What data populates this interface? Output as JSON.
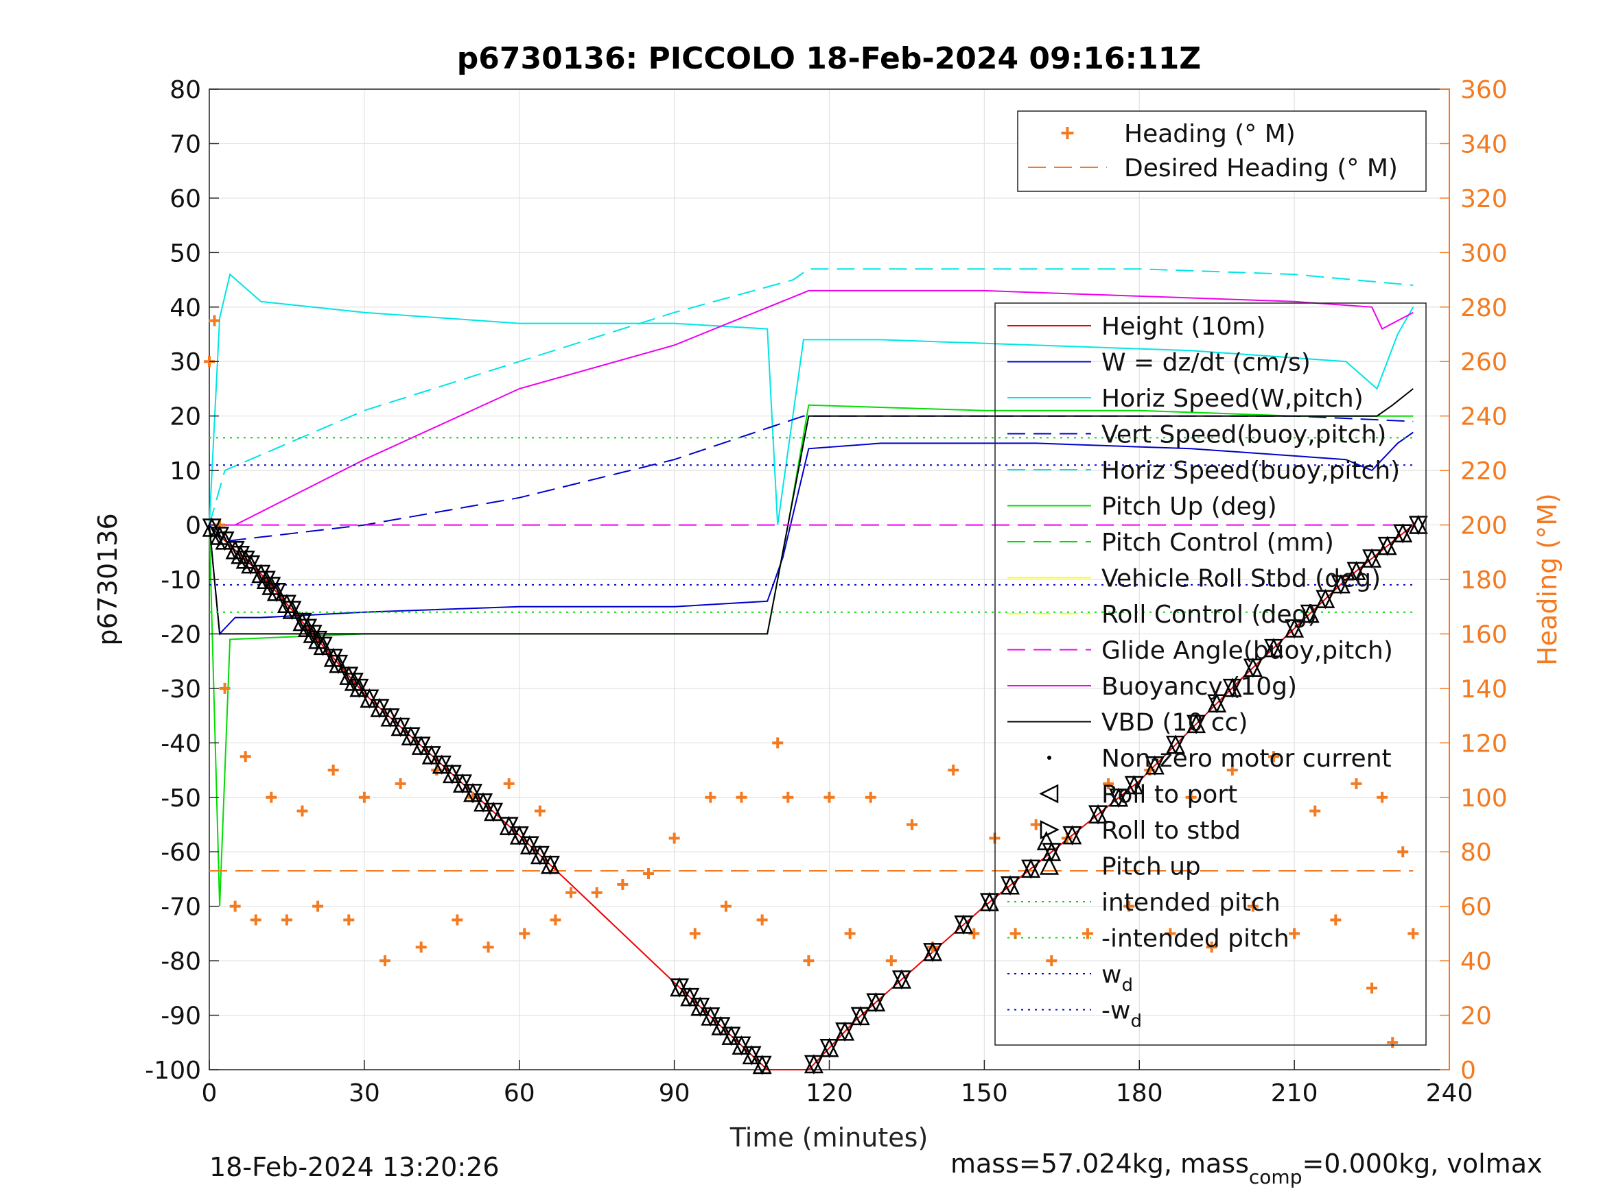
{
  "title": "p6730136: PICCOLO 18-Feb-2024 09:16:11Z",
  "footer_left": "18-Feb-2024 13:20:26",
  "footer_right_parts": [
    "mass=57.024kg, mass",
    "comp",
    "=0.000kg, volmax"
  ],
  "colors": {
    "orange": "#f47a20",
    "cyan": "#00e5e5",
    "yellow": "#ffff00",
    "blue": "#0000cc",
    "green": "#00dd00",
    "magenta": "#ee00ee",
    "red": "#ee0000",
    "black": "#000000"
  },
  "chart_data": {
    "type": "line",
    "title": "p6730136: PICCOLO 18-Feb-2024 09:16:11Z",
    "xlabel": "Time (minutes)",
    "ylabel": "p6730136",
    "y2label": "Heading (°M)",
    "xlim": [
      0,
      240
    ],
    "ylim": [
      -100,
      80
    ],
    "y2lim": [
      0,
      360
    ],
    "xticks": [
      0,
      30,
      60,
      90,
      120,
      150,
      180,
      210,
      240
    ],
    "yticks": [
      -100,
      -90,
      -80,
      -70,
      -60,
      -50,
      -40,
      -30,
      -20,
      -10,
      0,
      10,
      20,
      30,
      40,
      50,
      60,
      70,
      80
    ],
    "y2ticks": [
      0,
      20,
      40,
      60,
      80,
      100,
      120,
      140,
      160,
      180,
      200,
      220,
      240,
      260,
      280,
      300,
      320,
      340,
      360
    ],
    "grid": true,
    "legend_right_axis": {
      "placement": "top-right",
      "entries": [
        {
          "label": "Heading (° M)",
          "style": "plus",
          "color": "#f47a20"
        },
        {
          "label": "Desired Heading (° M)",
          "style": "dash",
          "color": "#f47a20"
        }
      ]
    },
    "legend_left_axis": {
      "placement": "right",
      "entries": [
        {
          "label": "Height (10m)",
          "style": "solid",
          "color": "#ee0000"
        },
        {
          "label": "W = dz/dt (cm/s)",
          "style": "solid",
          "color": "#0000cc"
        },
        {
          "label": "Horiz Speed(W,pitch)",
          "style": "solid",
          "color": "#00e5e5"
        },
        {
          "label": "Vert Speed(buoy,pitch)",
          "style": "dash",
          "color": "#0000cc"
        },
        {
          "label": "Horiz Speed(buoy,pitch)",
          "style": "dash",
          "color": "#00e5e5"
        },
        {
          "label": "Pitch Up (deg)",
          "style": "solid",
          "color": "#00dd00"
        },
        {
          "label": "Pitch Control (mm)",
          "style": "dash",
          "color": "#00dd00"
        },
        {
          "label": "Vehicle Roll Stbd (deg)",
          "style": "solid",
          "color": "#ffff00"
        },
        {
          "label": "Roll Control (deg)",
          "style": "dash",
          "color": "#ffff00"
        },
        {
          "label": "Glide Angle(buoy,pitch)",
          "style": "dash",
          "color": "#ee00ee"
        },
        {
          "label": "Buoyancy (10g)",
          "style": "solid",
          "color": "#ee00ee"
        },
        {
          "label": "VBD (10 cc)",
          "style": "solid",
          "color": "#000000"
        },
        {
          "label": "Non-zero motor current",
          "style": "dot",
          "color": "#000000"
        },
        {
          "label": "Roll to port",
          "style": "tri-left",
          "color": "#000000"
        },
        {
          "label": "Roll to stbd",
          "style": "tri-right",
          "color": "#000000"
        },
        {
          "label": "Pitch up",
          "style": "tri-up",
          "color": "#000000"
        },
        {
          "label": "intended pitch",
          "style": "dotted",
          "color": "#00dd00"
        },
        {
          "label": "-intended pitch",
          "style": "dotted",
          "color": "#00dd00"
        },
        {
          "label": "w",
          "sub": "d",
          "style": "dotted",
          "color": "#0000cc"
        },
        {
          "label": "-w",
          "sub": "d",
          "style": "dotted",
          "color": "#0000cc"
        }
      ]
    },
    "series": [
      {
        "name": "Height (10m)",
        "axis": "left",
        "color": "#ee0000",
        "style": "solid",
        "x": [
          0,
          2,
          10,
          30,
          60,
          90,
          108,
          116,
          125,
          150,
          180,
          200,
          220,
          233
        ],
        "y": [
          0,
          -2,
          -9,
          -31,
          -57,
          -84,
          -100,
          -100,
          -91,
          -70,
          -47,
          -28,
          -10,
          0
        ]
      },
      {
        "name": "W = dz/dt (cm/s)",
        "axis": "left",
        "color": "#0000cc",
        "style": "solid",
        "x": [
          0,
          1,
          2,
          5,
          10,
          30,
          60,
          90,
          108,
          111,
          116,
          130,
          160,
          190,
          220,
          225,
          230,
          233
        ],
        "y": [
          0,
          -10,
          -20,
          -17,
          -17,
          -16,
          -15,
          -15,
          -14,
          -6,
          14,
          15,
          15,
          14,
          12,
          10,
          15,
          17
        ]
      },
      {
        "name": "Horiz Speed(W,pitch)",
        "axis": "left",
        "color": "#00e5e5",
        "style": "solid",
        "x": [
          0,
          2,
          4,
          10,
          30,
          60,
          90,
          108,
          110,
          115,
          130,
          160,
          190,
          220,
          226,
          230,
          233
        ],
        "y": [
          0,
          38,
          46,
          41,
          39,
          37,
          37,
          36,
          0,
          34,
          34,
          33,
          32,
          30,
          25,
          35,
          40
        ]
      },
      {
        "name": "Vert Speed(buoy,pitch)",
        "axis": "left",
        "color": "#0000cc",
        "style": "dash",
        "x": [
          0,
          3,
          30,
          60,
          90,
          115,
          116,
          150,
          180,
          210,
          233
        ],
        "y": [
          0,
          -3,
          0,
          5,
          12,
          20,
          20,
          20,
          20,
          20,
          19
        ]
      },
      {
        "name": "Horiz Speed(buoy,pitch)",
        "axis": "left",
        "color": "#00e5e5",
        "style": "dash",
        "x": [
          0,
          3,
          30,
          60,
          90,
          113,
          116,
          150,
          180,
          210,
          233
        ],
        "y": [
          0,
          10,
          21,
          30,
          39,
          45,
          47,
          47,
          47,
          46,
          44
        ]
      },
      {
        "name": "Pitch Up (deg)",
        "axis": "left",
        "color": "#00dd00",
        "style": "solid",
        "x": [
          0,
          2,
          4,
          30,
          60,
          90,
          108,
          112,
          116,
          150,
          180,
          210,
          233
        ],
        "y": [
          0,
          -70,
          -21,
          -20,
          -20,
          -20,
          -20,
          0,
          22,
          21,
          21,
          20,
          20
        ]
      },
      {
        "name": "Buoyancy (10g)",
        "axis": "left",
        "color": "#ee00ee",
        "style": "solid",
        "x": [
          0,
          5,
          30,
          60,
          90,
          116,
          150,
          180,
          210,
          225,
          227,
          233
        ],
        "y": [
          0,
          0,
          12,
          25,
          33,
          43,
          43,
          42,
          41,
          40,
          36,
          39
        ]
      },
      {
        "name": "VBD (10 cc)",
        "axis": "left",
        "color": "#000000",
        "style": "solid",
        "x": [
          0,
          2,
          108,
          111,
          116,
          150,
          180,
          210,
          226,
          229,
          233
        ],
        "y": [
          0,
          -20,
          -20,
          -5,
          20,
          20,
          20,
          20,
          20,
          22,
          25
        ]
      },
      {
        "name": "Glide Angle(buoy,pitch)",
        "axis": "left",
        "color": "#ee00ee",
        "style": "dash",
        "x": [
          0,
          233
        ],
        "y": [
          0,
          0
        ]
      },
      {
        "name": "intended pitch",
        "axis": "left",
        "color": "#00dd00",
        "style": "dotted",
        "x": [
          0,
          233
        ],
        "y": [
          16,
          16
        ]
      },
      {
        "name": "-intended pitch",
        "axis": "left",
        "color": "#00dd00",
        "style": "dotted",
        "x": [
          0,
          233
        ],
        "y": [
          -16,
          -16
        ]
      },
      {
        "name": "w_d",
        "axis": "left",
        "color": "#0000cc",
        "style": "dotted",
        "x": [
          0,
          233
        ],
        "y": [
          11,
          11
        ]
      },
      {
        "name": "-w_d",
        "axis": "left",
        "color": "#0000cc",
        "style": "dotted",
        "x": [
          0,
          233
        ],
        "y": [
          -11,
          -11
        ]
      },
      {
        "name": "Desired Heading (° M)",
        "axis": "right",
        "color": "#f47a20",
        "style": "dash",
        "x": [
          0,
          233
        ],
        "y": [
          73,
          73
        ]
      }
    ],
    "heading": {
      "x": [
        0,
        1,
        2,
        3,
        5,
        7,
        9,
        12,
        15,
        18,
        21,
        24,
        27,
        30,
        34,
        37,
        41,
        44,
        48,
        51,
        54,
        58,
        61,
        64,
        67,
        70,
        75,
        80,
        85,
        90,
        94,
        97,
        100,
        103,
        107,
        110,
        112,
        116,
        120,
        124,
        128,
        132,
        136,
        140,
        144,
        148,
        152,
        156,
        160,
        163,
        166,
        170,
        174,
        178,
        182,
        186,
        190,
        194,
        198,
        202,
        206,
        210,
        214,
        218,
        222,
        225,
        227,
        229,
        231,
        233
      ],
      "y": [
        260,
        275,
        200,
        140,
        60,
        115,
        55,
        100,
        55,
        95,
        60,
        110,
        55,
        100,
        40,
        105,
        45,
        110,
        55,
        100,
        45,
        105,
        50,
        95,
        55,
        65,
        65,
        68,
        72,
        85,
        50,
        100,
        60,
        100,
        55,
        120,
        100,
        40,
        100,
        50,
        100,
        40,
        90,
        45,
        110,
        50,
        85,
        50,
        90,
        40,
        85,
        50,
        105,
        60,
        110,
        50,
        100,
        45,
        110,
        60,
        115,
        50,
        95,
        55,
        105,
        30,
        100,
        10,
        80,
        50
      ]
    },
    "markers": {
      "roll_to_port_x": [
        0.5,
        2,
        3,
        5,
        6,
        7,
        8,
        10,
        11,
        12,
        13,
        15,
        16,
        18,
        19,
        20,
        21,
        22,
        24,
        25,
        27,
        28,
        29,
        31,
        33,
        35,
        37,
        39,
        41,
        43,
        45,
        47,
        49,
        51,
        53,
        55,
        58,
        60,
        62,
        64,
        66,
        91,
        93,
        95,
        97,
        99,
        101,
        103,
        105,
        107,
        117,
        120,
        123,
        126,
        129,
        134,
        140,
        146,
        151,
        155,
        159,
        163,
        167,
        172,
        176,
        179,
        183,
        187,
        191,
        195,
        198,
        202,
        206,
        210,
        213,
        216,
        219,
        222,
        225,
        228,
        231,
        234
      ],
      "pitch_up_x": [
        162
      ]
    }
  }
}
